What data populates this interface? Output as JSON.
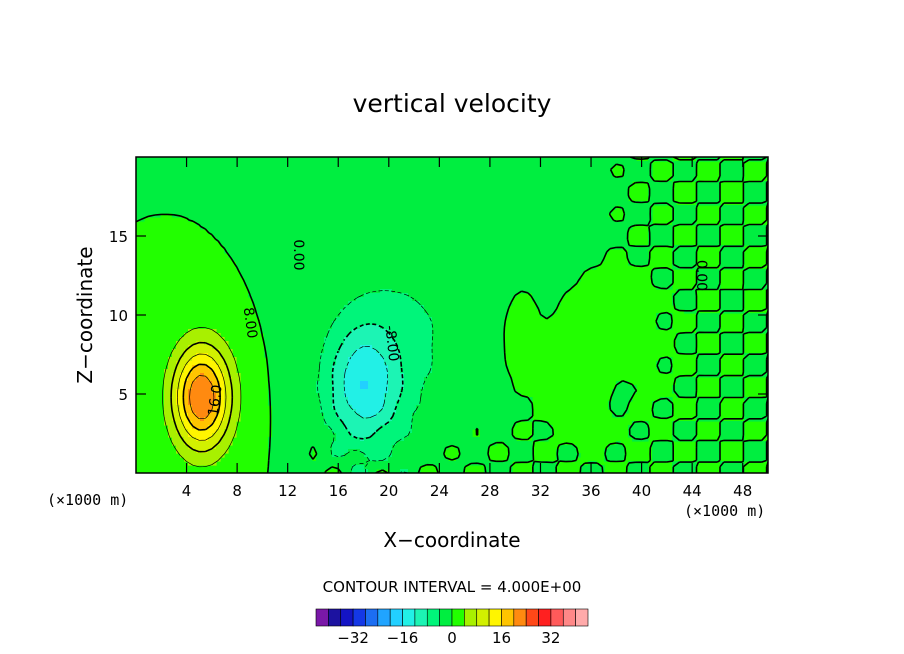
{
  "chart_data": {
    "type": "heatmap",
    "title": "vertical velocity",
    "xlabel": "X−coordinate",
    "ylabel": "Z−coordinate",
    "x_unit_label": "(×1000 m)",
    "z_unit_label": "(×1000 m)",
    "xlim": [
      0,
      50
    ],
    "ylim": [
      0,
      20
    ],
    "x_ticks": [
      4,
      8,
      12,
      16,
      20,
      24,
      28,
      32,
      36,
      40,
      44,
      48
    ],
    "x_tick_labels": [
      "4",
      "8",
      "12",
      "16",
      "20",
      "24",
      "28",
      "32",
      "36",
      "40",
      "44",
      "48"
    ],
    "y_ticks": [
      5,
      10,
      15
    ],
    "y_tick_labels": [
      "5",
      "10",
      "15"
    ],
    "contour_interval_text": "CONTOUR INTERVAL =  4.000E+00",
    "contour_labels": [
      {
        "text": "16.0",
        "x": 6.3,
        "z": 4.6,
        "angle": -82
      },
      {
        "text": "8.00",
        "x": 9.0,
        "z": 9.5,
        "angle": 82
      },
      {
        "text": "0.00",
        "x": 12.8,
        "z": 13.8,
        "angle": 90
      },
      {
        "text": "-8.00",
        "x": 20.2,
        "z": 8.2,
        "angle": 84
      },
      {
        "text": "0.00",
        "x": 44.7,
        "z": 12.5,
        "angle": 90
      }
    ],
    "features": [
      {
        "kind": "updraft",
        "x": 5.2,
        "z": 4.8,
        "peak": 24,
        "sx": 2.3,
        "sz": 3.3
      },
      {
        "kind": "downdraft",
        "x": 18.0,
        "z": 5.5,
        "peak": -14,
        "sx": 3.0,
        "sz": 4.0
      },
      {
        "kind": "weak-downdraft",
        "x": 22.0,
        "z": 9.0,
        "peak": -4,
        "sx": 6.0,
        "sz": 6.5
      }
    ],
    "colorbar": {
      "levels": [
        -36,
        -32,
        -28,
        -24,
        -20,
        -16,
        -12,
        -8,
        -4,
        0,
        4,
        8,
        12,
        16,
        20,
        24,
        28,
        32,
        36
      ],
      "tick_labels": [
        "−32",
        "−16",
        "0",
        "16",
        "32"
      ],
      "tick_values": [
        -32,
        -16,
        0,
        16,
        32
      ],
      "colors": [
        "#7a18a8",
        "#1c12a0",
        "#1414c4",
        "#1438e6",
        "#1c6ef2",
        "#20a4ff",
        "#22d0ff",
        "#22f0e6",
        "#1cf4b4",
        "#00f57a",
        "#00ee40",
        "#22ff00",
        "#a8f000",
        "#d2f000",
        "#fff500",
        "#ffc400",
        "#ff8a10",
        "#ff4818",
        "#ff2020",
        "#ff5a5a",
        "#ff8888",
        "#ffaaaa"
      ]
    }
  }
}
